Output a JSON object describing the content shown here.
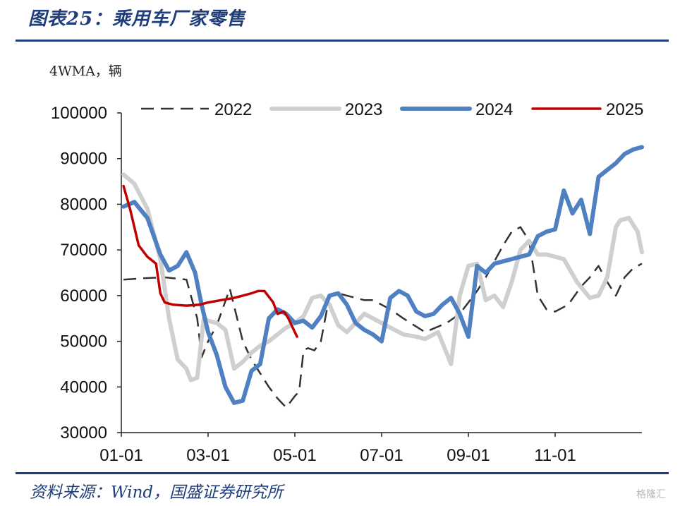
{
  "figure": {
    "title": "图表25：乘用车厂家零售",
    "unit": "4WMA，辆",
    "source": "资料来源：Wind，国盛证券研究所",
    "watermark": "格隆汇"
  },
  "colors": {
    "title_blue": "#1f3e7a",
    "s2022": "#333333",
    "s2023": "#cfcfcf",
    "s2024": "#4f81c2",
    "s2025": "#c00000"
  },
  "chart_data": {
    "type": "line",
    "title": "乘用车厂家零售",
    "ylabel": "4WMA，辆",
    "xlabel": "",
    "ylim": [
      30000,
      100000
    ],
    "xlim": [
      0,
      12
    ],
    "x_unit": "months since 01-01",
    "yticks": [
      30000,
      40000,
      50000,
      60000,
      70000,
      80000,
      90000,
      100000
    ],
    "xticks": [
      {
        "x": 0,
        "label": "01-01"
      },
      {
        "x": 2,
        "label": "03-01"
      },
      {
        "x": 4,
        "label": "05-01"
      },
      {
        "x": 6,
        "label": "07-01"
      },
      {
        "x": 8,
        "label": "09-01"
      },
      {
        "x": 10,
        "label": "11-01"
      }
    ],
    "legend_position": "top",
    "series": [
      {
        "name": "2022",
        "style": "dashed",
        "color": "#333333",
        "width": 2.5,
        "x": [
          0.05,
          0.5,
          1.0,
          1.5,
          1.75,
          1.85,
          2.0,
          2.2,
          2.5,
          2.8,
          3.0,
          3.2,
          3.4,
          3.6,
          3.8,
          4.0,
          4.1,
          4.2,
          4.3,
          4.45,
          4.6,
          4.8,
          5.0,
          5.2,
          5.4,
          5.6,
          5.8,
          6.0,
          6.2,
          6.5,
          7.0,
          7.5,
          7.8,
          8.0,
          8.2,
          8.4,
          8.6,
          8.8,
          9.0,
          9.2,
          9.4,
          9.6,
          9.8,
          10.0,
          10.3,
          10.6,
          10.8,
          11.0,
          11.2,
          11.4,
          11.6,
          11.8,
          12.0
        ],
        "y": [
          63500,
          63800,
          64000,
          63500,
          55000,
          46500,
          50000,
          53500,
          61500,
          50000,
          46000,
          43000,
          40000,
          37500,
          35500,
          38000,
          39000,
          48000,
          48500,
          48000,
          50000,
          60000,
          60500,
          60000,
          59500,
          59000,
          59000,
          58000,
          57000,
          55000,
          52000,
          54000,
          56000,
          58500,
          61000,
          64000,
          67500,
          71000,
          74000,
          75000,
          72000,
          60000,
          57000,
          56500,
          58000,
          62000,
          64000,
          66500,
          63000,
          60000,
          64000,
          66000,
          67000
        ]
      },
      {
        "name": "2023",
        "style": "solid",
        "color": "#cfcfcf",
        "width": 6,
        "x": [
          0.05,
          0.3,
          0.6,
          0.9,
          1.1,
          1.3,
          1.5,
          1.6,
          1.75,
          1.9,
          2.0,
          2.2,
          2.4,
          2.6,
          2.8,
          3.0,
          3.2,
          3.4,
          3.6,
          3.8,
          4.0,
          4.2,
          4.4,
          4.6,
          4.8,
          5.0,
          5.2,
          5.4,
          5.6,
          5.8,
          6.0,
          6.2,
          6.5,
          6.8,
          7.0,
          7.3,
          7.6,
          7.8,
          8.0,
          8.2,
          8.4,
          8.6,
          8.8,
          9.0,
          9.2,
          9.4,
          9.6,
          9.8,
          10.0,
          10.2,
          10.5,
          10.8,
          11.0,
          11.2,
          11.4,
          11.5,
          11.7,
          11.9,
          12.0
        ],
        "y": [
          86500,
          84500,
          79000,
          68000,
          55000,
          46000,
          44000,
          41500,
          42000,
          55000,
          54500,
          54000,
          52500,
          44000,
          45500,
          47500,
          49000,
          50000,
          51500,
          53000,
          54000,
          55500,
          59500,
          60000,
          58000,
          53500,
          52000,
          54000,
          56000,
          55000,
          54000,
          53000,
          51500,
          51000,
          50500,
          52000,
          45000,
          60000,
          66500,
          67000,
          59000,
          60000,
          57500,
          63000,
          70000,
          72000,
          69000,
          69000,
          68500,
          68000,
          63000,
          59500,
          60000,
          64000,
          75000,
          76500,
          77000,
          74000,
          69500
        ]
      },
      {
        "name": "2024",
        "style": "solid",
        "color": "#4f81c2",
        "width": 6,
        "x": [
          0.05,
          0.3,
          0.6,
          0.9,
          1.1,
          1.3,
          1.5,
          1.7,
          1.85,
          2.0,
          2.2,
          2.4,
          2.6,
          2.8,
          3.0,
          3.2,
          3.4,
          3.6,
          3.8,
          4.0,
          4.2,
          4.4,
          4.6,
          4.8,
          5.0,
          5.2,
          5.4,
          5.6,
          5.8,
          6.0,
          6.2,
          6.4,
          6.6,
          6.8,
          7.0,
          7.2,
          7.4,
          7.6,
          7.8,
          8.0,
          8.2,
          8.4,
          8.6,
          8.8,
          9.0,
          9.2,
          9.4,
          9.6,
          9.8,
          10.0,
          10.2,
          10.4,
          10.6,
          10.8,
          11.0,
          11.2,
          11.4,
          11.6,
          11.8,
          12.0
        ],
        "y": [
          79500,
          80500,
          77000,
          69000,
          65500,
          66500,
          69500,
          65000,
          58000,
          52000,
          47000,
          40000,
          36500,
          37000,
          43500,
          45000,
          55000,
          57000,
          56000,
          54000,
          54500,
          53000,
          55500,
          60000,
          60500,
          58000,
          54000,
          52500,
          51500,
          50000,
          59500,
          61000,
          60000,
          56500,
          55500,
          56000,
          58000,
          59500,
          56000,
          51000,
          66500,
          65000,
          67000,
          67500,
          68000,
          68500,
          69000,
          73000,
          74000,
          74500,
          83000,
          78000,
          81000,
          73500,
          86000,
          87500,
          89000,
          91000,
          92000,
          92500
        ]
      },
      {
        "name": "2025",
        "style": "solid",
        "color": "#c00000",
        "width": 3.5,
        "x": [
          0.05,
          0.2,
          0.4,
          0.6,
          0.8,
          0.9,
          1.0,
          1.2,
          1.5,
          1.8,
          2.0,
          2.3,
          2.6,
          2.8,
          3.0,
          3.15,
          3.3,
          3.5,
          3.6,
          3.75,
          3.85,
          3.9,
          4.0,
          4.05
        ],
        "y": [
          84000,
          79000,
          71000,
          68500,
          67000,
          60500,
          58500,
          58000,
          57800,
          58000,
          58500,
          59000,
          59500,
          60000,
          60500,
          61000,
          61000,
          58500,
          56000,
          56500,
          55000,
          54000,
          52000,
          51000
        ]
      }
    ]
  }
}
